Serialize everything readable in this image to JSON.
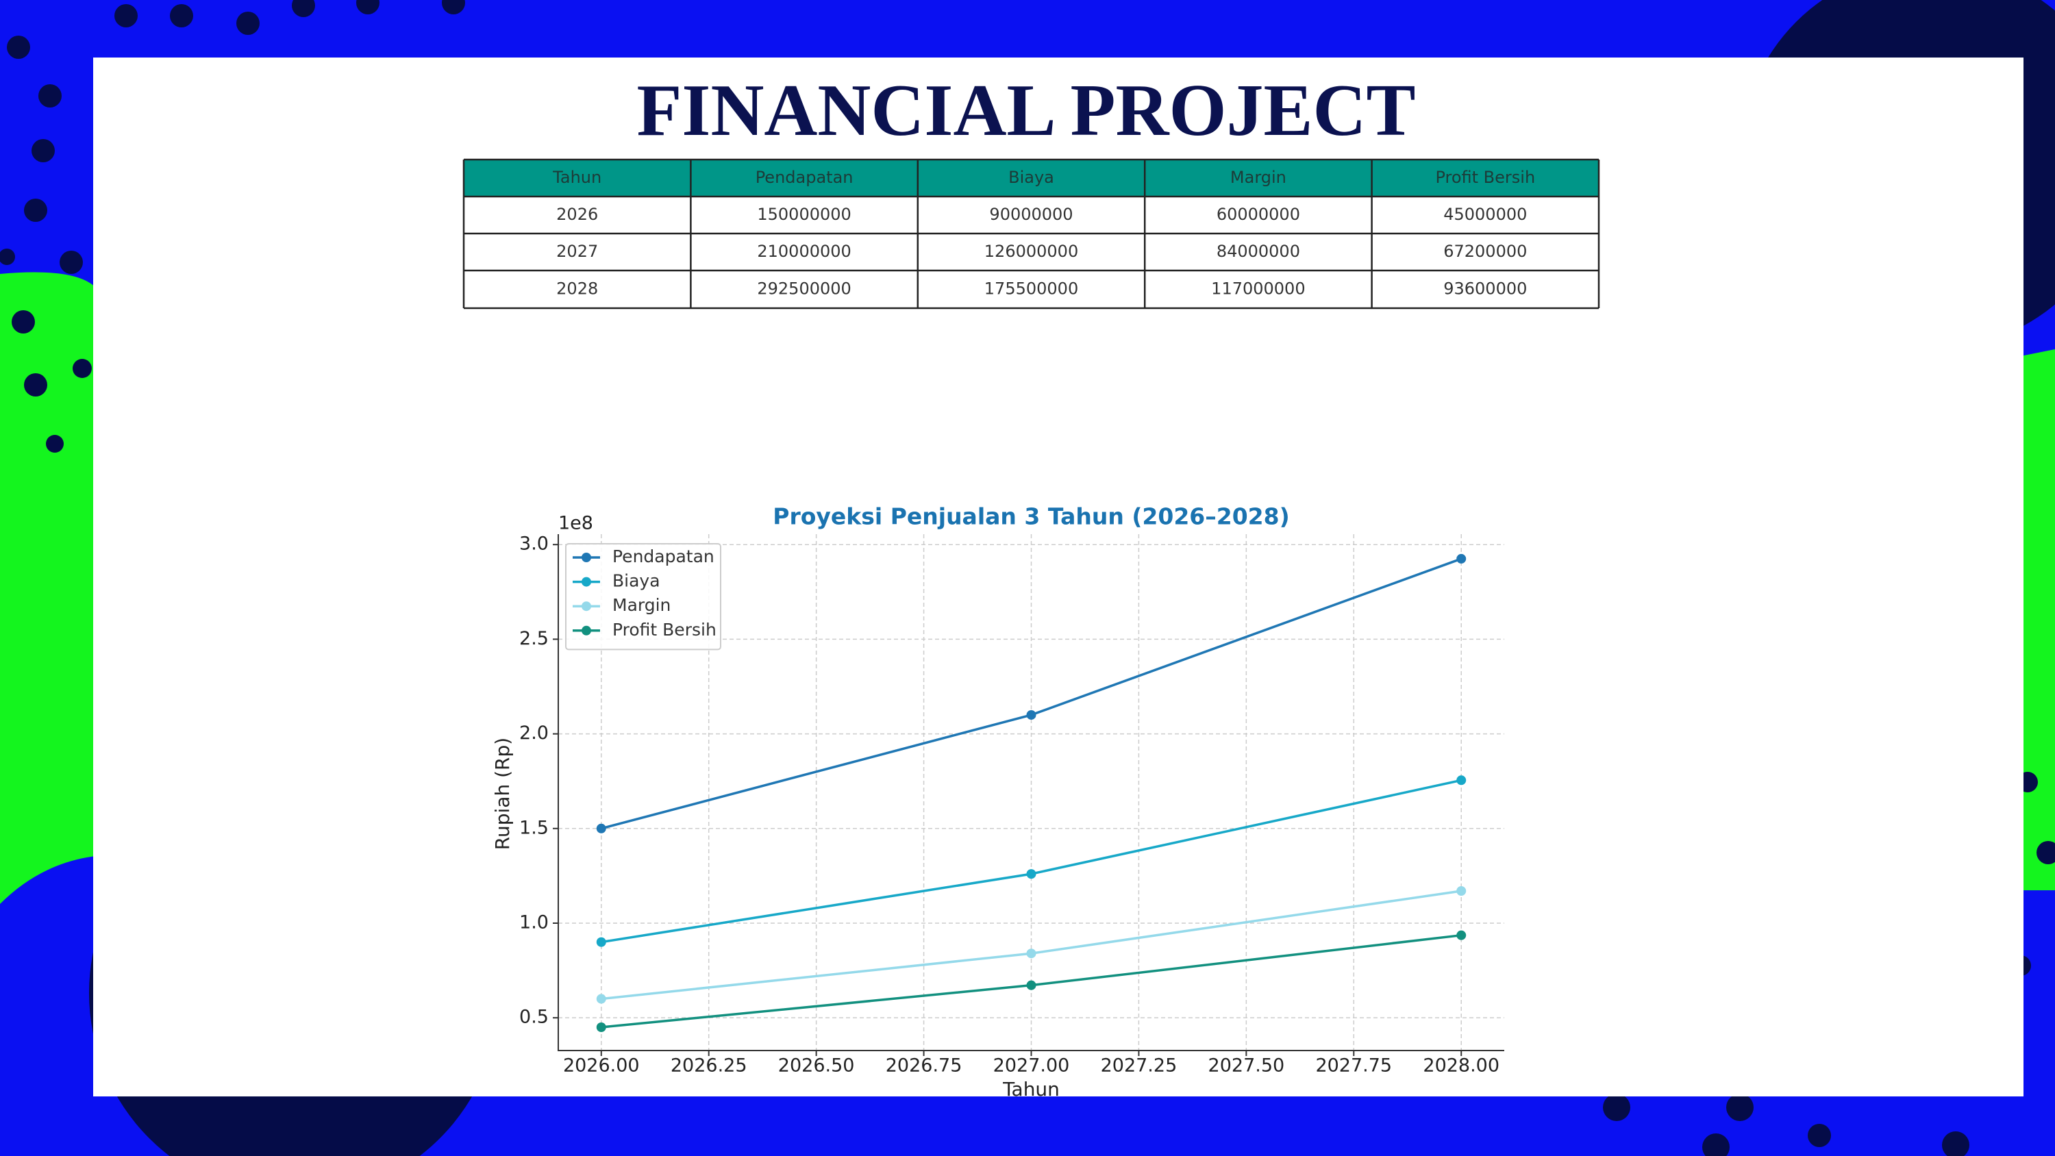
{
  "title": "FINANCIAL PROJECT",
  "table": {
    "header": [
      "Tahun",
      "Pendapatan",
      "Biaya",
      "Margin",
      "Profit Bersih"
    ],
    "rows": [
      [
        2026,
        150000000,
        90000000,
        60000000,
        45000000
      ],
      [
        2027,
        210000000,
        126000000,
        84000000,
        67200000
      ],
      [
        2028,
        292500000,
        175500000,
        117000000,
        93600000
      ]
    ]
  },
  "chart_data": {
    "type": "line",
    "title": "Proyeksi Penjualan 3 Tahun (2026–2028)",
    "x_label": "Tahun",
    "y_label": "Rupiah (Rp)",
    "y_offset_label": "1e8",
    "x": [
      2026,
      2027,
      2028
    ],
    "series": [
      {
        "name": "Pendapatan",
        "color": "#1f77b4",
        "values": [
          150000000,
          210000000,
          292500000
        ]
      },
      {
        "name": "Biaya",
        "color": "#17a8c8",
        "values": [
          90000000,
          126000000,
          175500000
        ]
      },
      {
        "name": "Margin",
        "color": "#94d9ea",
        "values": [
          60000000,
          84000000,
          117000000
        ]
      },
      {
        "name": "Profit Bersih",
        "color": "#12907f",
        "values": [
          45000000,
          67200000,
          93600000
        ]
      }
    ],
    "xlim": [
      2025.9,
      2028.1
    ],
    "xticks": [
      {
        "value": 2026,
        "label": "2026.00"
      },
      {
        "value": 2026.25,
        "label": "2026.25"
      },
      {
        "value": 2026.5,
        "label": "2026.50"
      },
      {
        "value": 2026.75,
        "label": "2026.75"
      },
      {
        "value": 2027,
        "label": "2027.00"
      },
      {
        "value": 2027.25,
        "label": "2027.25"
      },
      {
        "value": 2027.5,
        "label": "2027.50"
      },
      {
        "value": 2027.75,
        "label": "2027.75"
      },
      {
        "value": 2028,
        "label": "2028.00"
      }
    ],
    "ylim": [
      32700000,
      305500000
    ],
    "yticks": [
      {
        "value": 50000000,
        "label": "0.5"
      },
      {
        "value": 100000000,
        "label": "1.0"
      },
      {
        "value": 150000000,
        "label": "1.5"
      },
      {
        "value": 200000000,
        "label": "2.0"
      },
      {
        "value": 250000000,
        "label": "2.5"
      },
      {
        "value": 300000000,
        "label": "3.0"
      }
    ],
    "grid": true,
    "legend": "upper left"
  }
}
